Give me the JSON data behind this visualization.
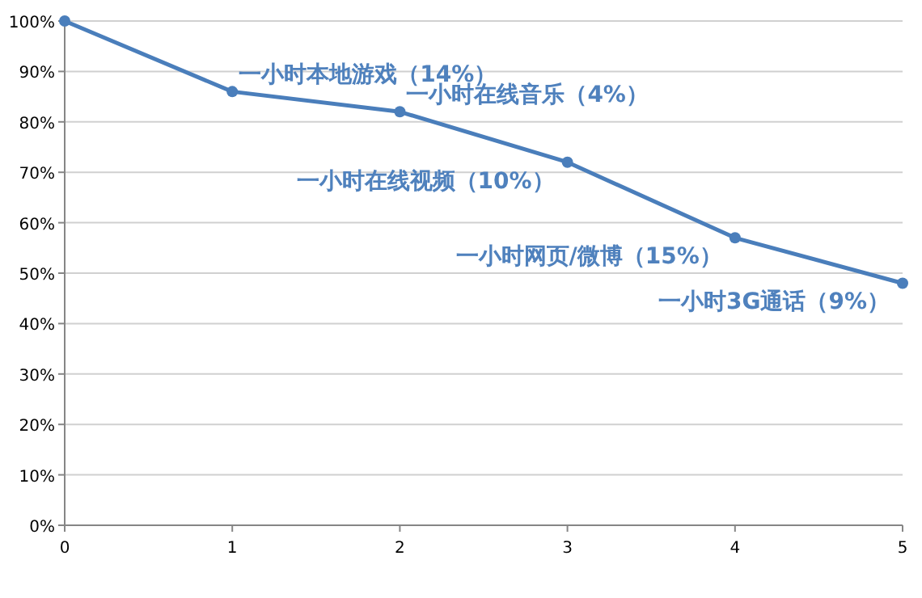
{
  "chart_data": {
    "type": "line",
    "x": [
      0,
      1,
      2,
      3,
      4,
      5
    ],
    "series": [
      {
        "color": "#4a7ebb",
        "values": [
          100,
          86,
          82,
          72,
          57,
          48
        ]
      }
    ],
    "xlim": [
      0,
      5
    ],
    "xticks": [
      0,
      1,
      2,
      3,
      4,
      5
    ],
    "ylim": [
      0,
      100
    ],
    "yticks": [
      {
        "value": 0,
        "label": "0%"
      },
      {
        "value": 10,
        "label": "10%"
      },
      {
        "value": 20,
        "label": "20%"
      },
      {
        "value": 30,
        "label": "30%"
      },
      {
        "value": 40,
        "label": "40%"
      },
      {
        "value": 50,
        "label": "50%"
      },
      {
        "value": 60,
        "label": "60%"
      },
      {
        "value": 70,
        "label": "70%"
      },
      {
        "value": 80,
        "label": "80%"
      },
      {
        "value": 90,
        "label": "90%"
      },
      {
        "value": 100,
        "label": "100%"
      }
    ],
    "grid": "y",
    "marker": "circle",
    "line_style": "solid",
    "annotations": [
      {
        "text": "一小时本地游戏（14%）",
        "x": 1,
        "y": 86
      },
      {
        "text": "一小时在线音乐（4%）",
        "x": 2,
        "y": 82
      },
      {
        "text": "一小时在线视频（10%）",
        "x": 3,
        "y": 72
      },
      {
        "text": "一小时网页/微博（15%）",
        "x": 4,
        "y": 57
      },
      {
        "text": "一小时3G通话（9%）",
        "x": 5,
        "y": 48
      }
    ]
  }
}
